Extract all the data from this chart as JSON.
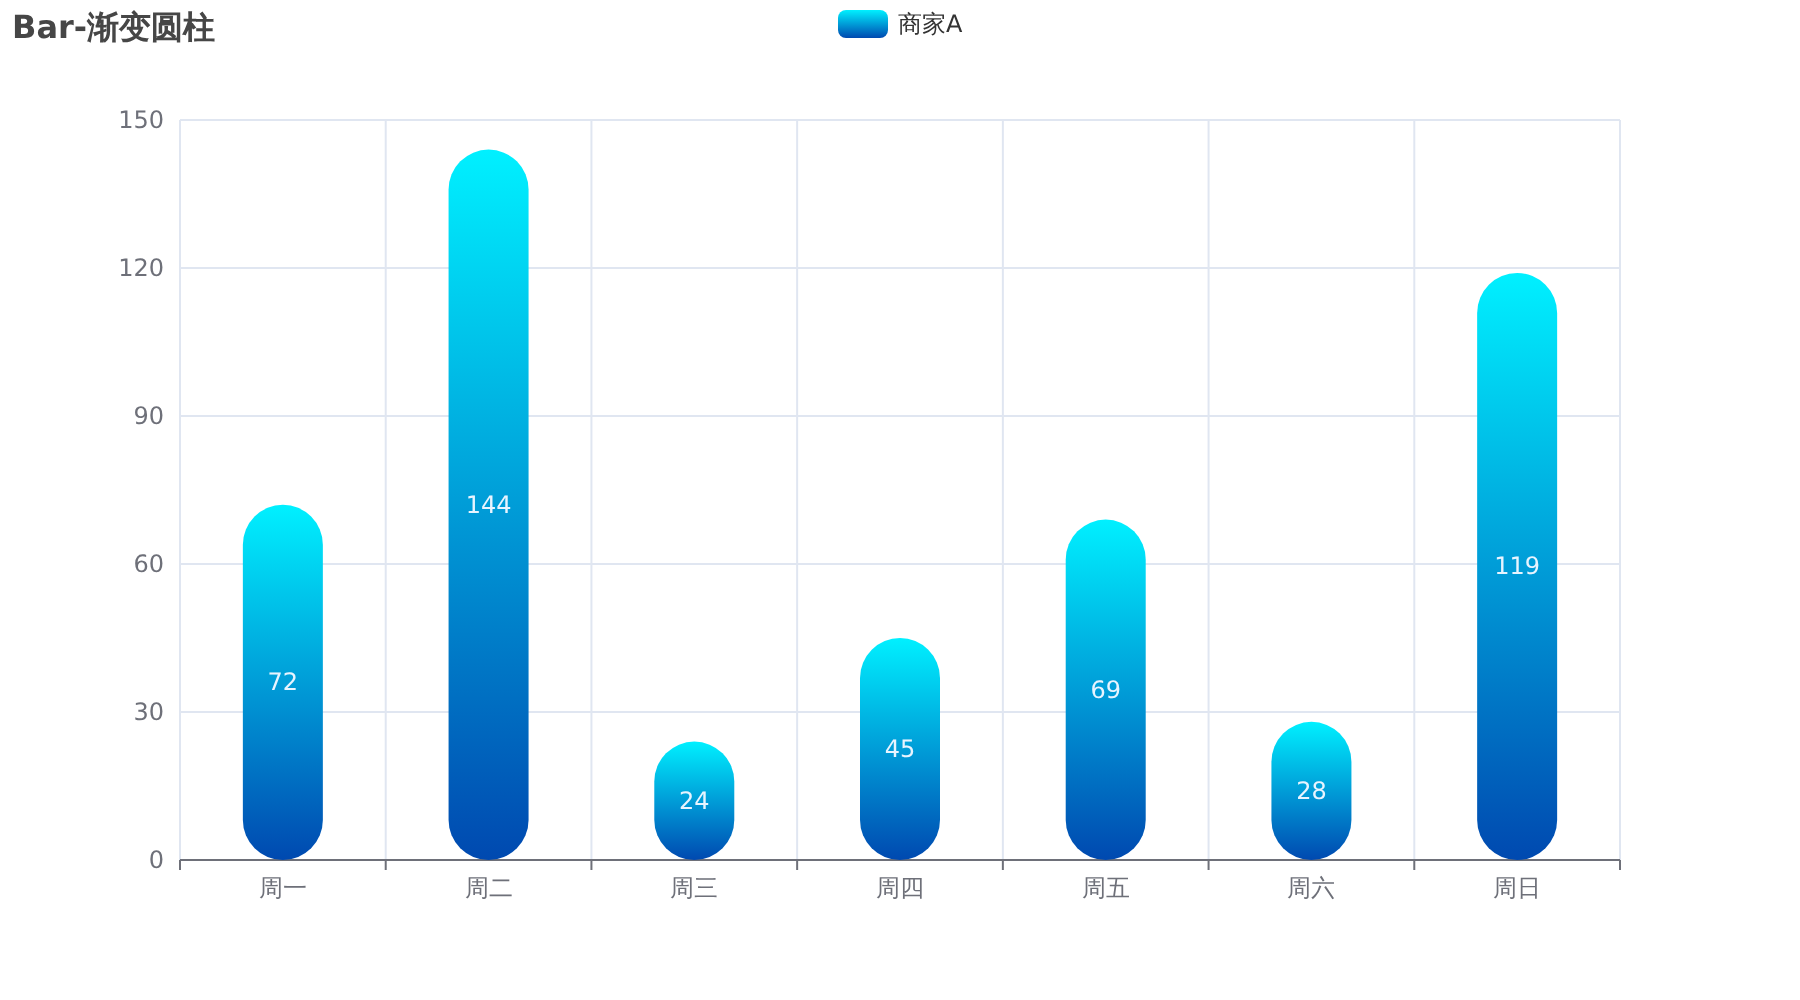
{
  "chart_data": {
    "type": "bar",
    "title": "Bar-渐变圆柱",
    "categories": [
      "周一",
      "周二",
      "周三",
      "周四",
      "周五",
      "周六",
      "周日"
    ],
    "series": [
      {
        "name": "商家A",
        "color": "#00f0ff",
        "values": [
          72,
          144,
          24,
          45,
          69,
          28,
          119
        ]
      }
    ],
    "ylim": [
      0,
      150
    ],
    "yticks": [
      0,
      30,
      60,
      90,
      120,
      150
    ],
    "grid": true,
    "legend": "top",
    "data_labels": true
  }
}
